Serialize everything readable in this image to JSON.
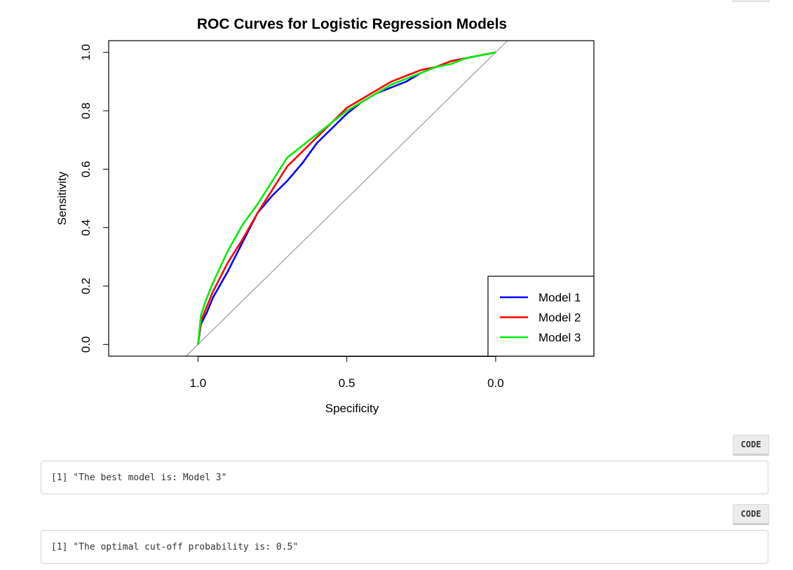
{
  "chart_data": {
    "type": "line",
    "title": "ROC Curves for Logistic Regression Models",
    "xlabel": "Specificity",
    "ylabel": "Sensitivity",
    "xlim": [
      1.3,
      -0.33
    ],
    "ylim": [
      -0.04,
      1.04
    ],
    "x_ticks": [
      "1.0",
      "0.5",
      "0.0"
    ],
    "x_tick_values": [
      1.0,
      0.5,
      0.0
    ],
    "y_ticks": [
      "0.0",
      "0.2",
      "0.4",
      "0.6",
      "0.8",
      "1.0"
    ],
    "y_tick_values": [
      0.0,
      0.2,
      0.4,
      0.6,
      0.8,
      1.0
    ],
    "diagonal_color": "#a0a0a0",
    "legend_position": "bottom-right",
    "series": [
      {
        "name": "Model 1",
        "color": "#0000ff",
        "x": [
          1.0,
          0.99,
          0.97,
          0.95,
          0.9,
          0.85,
          0.8,
          0.75,
          0.7,
          0.65,
          0.6,
          0.55,
          0.5,
          0.45,
          0.4,
          0.35,
          0.3,
          0.25,
          0.2,
          0.15,
          0.1,
          0.05,
          0.0
        ],
        "y": [
          0.0,
          0.07,
          0.11,
          0.16,
          0.25,
          0.35,
          0.45,
          0.51,
          0.56,
          0.62,
          0.69,
          0.74,
          0.79,
          0.83,
          0.86,
          0.88,
          0.9,
          0.93,
          0.95,
          0.97,
          0.98,
          0.99,
          1.0
        ]
      },
      {
        "name": "Model 2",
        "color": "#ff0000",
        "x": [
          1.0,
          0.99,
          0.97,
          0.95,
          0.9,
          0.85,
          0.8,
          0.75,
          0.7,
          0.65,
          0.6,
          0.55,
          0.5,
          0.45,
          0.4,
          0.35,
          0.3,
          0.25,
          0.2,
          0.15,
          0.1,
          0.05,
          0.0
        ],
        "y": [
          0.0,
          0.08,
          0.13,
          0.18,
          0.28,
          0.36,
          0.45,
          0.53,
          0.61,
          0.66,
          0.71,
          0.76,
          0.81,
          0.84,
          0.87,
          0.9,
          0.92,
          0.94,
          0.95,
          0.97,
          0.98,
          0.99,
          1.0
        ]
      },
      {
        "name": "Model 3",
        "color": "#00ee00",
        "x": [
          1.0,
          0.99,
          0.97,
          0.95,
          0.9,
          0.85,
          0.8,
          0.75,
          0.7,
          0.65,
          0.6,
          0.55,
          0.5,
          0.45,
          0.4,
          0.35,
          0.3,
          0.25,
          0.2,
          0.15,
          0.1,
          0.05,
          0.0
        ],
        "y": [
          0.0,
          0.1,
          0.16,
          0.21,
          0.32,
          0.41,
          0.48,
          0.56,
          0.64,
          0.68,
          0.72,
          0.76,
          0.8,
          0.83,
          0.86,
          0.89,
          0.91,
          0.93,
          0.95,
          0.96,
          0.98,
          0.99,
          1.0
        ]
      }
    ]
  },
  "outputs": [
    {
      "code_button": "CODE",
      "text": "[1] \"The best model is: Model 3\""
    },
    {
      "code_button": "CODE",
      "text": "[1] \"The optimal cut-off probability is: 0.5\""
    }
  ]
}
